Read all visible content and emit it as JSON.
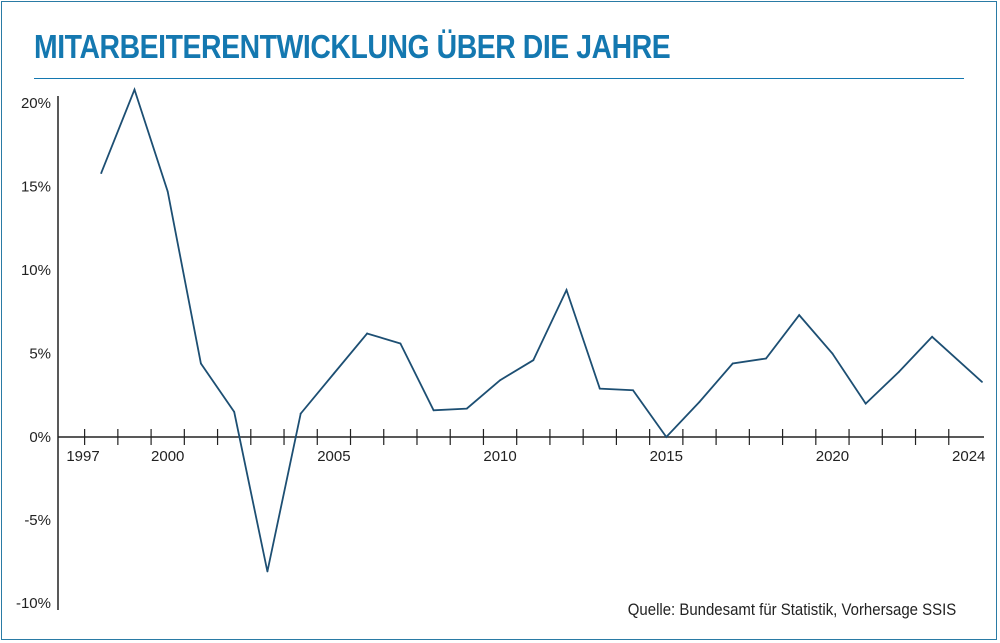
{
  "title": "MITARBEITERENTWICKLUNG ÜBER DIE JAHRE",
  "source": "Quelle: Bundesamt für Statistik, Vorhersage SSIS",
  "colors": {
    "accent": "#1478b0",
    "line": "#1d4f73",
    "axis": "#222222"
  },
  "chart_data": {
    "type": "line",
    "title": "MITARBEITERENTWICKLUNG ÜBER DIE JAHRE",
    "xlabel": "",
    "ylabel": "",
    "xlim": [
      1997,
      2024.5
    ],
    "ylim": [
      -10,
      20.5
    ],
    "y_ticks": [
      20,
      15,
      10,
      5,
      0,
      -5,
      -10
    ],
    "y_tick_labels": [
      "20%",
      "15%",
      "10%",
      "5%",
      "0%",
      "-5%",
      "-10%"
    ],
    "x_tick_labels": [
      {
        "year": 1997,
        "label": "1997"
      },
      {
        "year": 2000,
        "label": "2000"
      },
      {
        "year": 2005,
        "label": "2005"
      },
      {
        "year": 2010,
        "label": "2010"
      },
      {
        "year": 2015,
        "label": "2015"
      },
      {
        "year": 2020,
        "label": "2020"
      },
      {
        "year": 2024,
        "label": "2024"
      }
    ],
    "grid": false,
    "series": [
      {
        "x": [
          1998,
          1999,
          2000,
          2001,
          2002,
          2003,
          2004,
          2005,
          2006,
          2007,
          2008,
          2009,
          2010,
          2011,
          2012,
          2013,
          2014,
          2015,
          2016,
          2017,
          2018,
          2019,
          2020,
          2021,
          2022,
          2023,
          2024.5
        ],
        "y": [
          15.8,
          20.8,
          14.7,
          4.4,
          1.5,
          -8.1,
          1.4,
          3.8,
          6.2,
          5.6,
          1.6,
          1.7,
          3.4,
          4.6,
          8.8,
          2.9,
          2.8,
          0.0,
          2.1,
          4.4,
          4.7,
          7.3,
          5.0,
          2.0,
          3.9,
          6.0,
          3.3
        ]
      }
    ]
  }
}
